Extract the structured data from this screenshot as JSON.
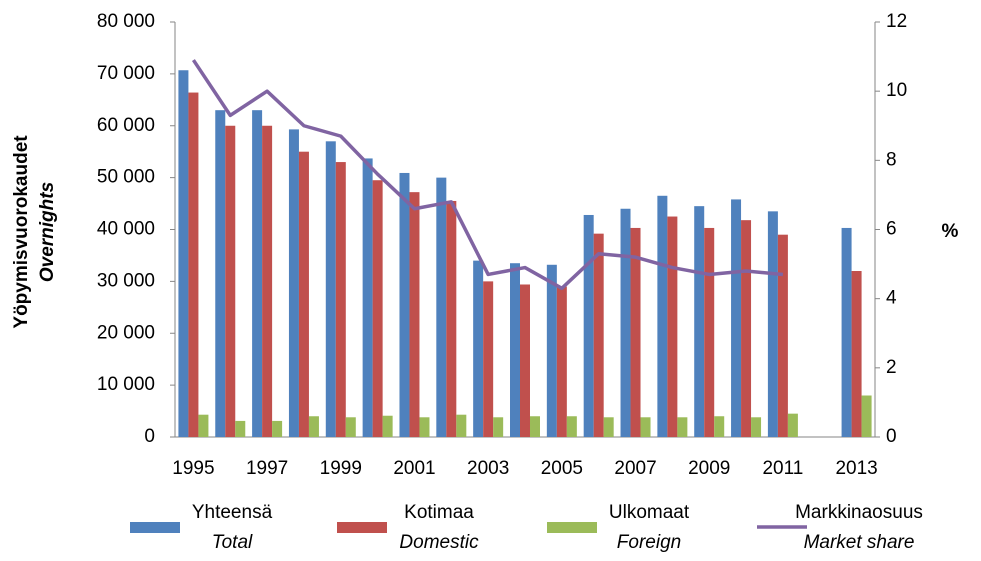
{
  "chart_data": {
    "type": "bar",
    "y_label": "Yöpymisvuorokaudet",
    "y_label_sub": "Overnights",
    "y2_label": "%",
    "categories": [
      "1995",
      null,
      "1997",
      null,
      "1999",
      null,
      "2001",
      null,
      "2003",
      null,
      "2005",
      null,
      "2007",
      null,
      "2009",
      null,
      "2011",
      null,
      "2013"
    ],
    "series": [
      {
        "name": "Yhteensä",
        "subname": "Total",
        "color": "#4f81bd",
        "values": [
          70700,
          63000,
          63000,
          59300,
          57000,
          53700,
          50900,
          50000,
          34000,
          33500,
          33200,
          42800,
          44000,
          46500,
          44500,
          45800,
          43500,
          null,
          40300
        ]
      },
      {
        "name": "Kotimaa",
        "subname": "Domestic",
        "color": "#c0504d",
        "values": [
          66400,
          60000,
          60000,
          55000,
          53000,
          49500,
          47200,
          45500,
          30000,
          29400,
          29000,
          39200,
          40300,
          42500,
          40300,
          41800,
          39000,
          null,
          32000
        ]
      },
      {
        "name": "Ulkomaat",
        "subname": "Foreign",
        "color": "#9bbb59",
        "values": [
          4300,
          3100,
          3100,
          4000,
          3800,
          4100,
          3800,
          4300,
          3800,
          4000,
          4000,
          3800,
          3800,
          3800,
          4000,
          3800,
          4500,
          null,
          8000
        ]
      },
      {
        "name": "Markkinaosuus",
        "subname": "Market share",
        "color": "#8064a2",
        "type": "line",
        "axis": "y2",
        "values": [
          10.9,
          9.3,
          10.0,
          9.0,
          8.7,
          7.6,
          6.6,
          6.8,
          4.7,
          4.9,
          4.3,
          5.3,
          5.2,
          4.9,
          4.7,
          4.8,
          4.7,
          null,
          null
        ]
      }
    ],
    "ylim": [
      0,
      80000
    ],
    "yticks": [
      0,
      {
        "value": 10000,
        "label": "10 000"
      },
      {
        "value": 20000,
        "label": "20 000"
      },
      {
        "value": 30000,
        "label": "30 000"
      },
      {
        "value": 40000,
        "label": "40 000"
      },
      {
        "value": 50000,
        "label": "50 000"
      },
      {
        "value": 60000,
        "label": "60 000"
      },
      {
        "value": 70000,
        "label": "70 000"
      },
      {
        "value": 80000,
        "label": "80 000"
      }
    ],
    "y2lim": [
      0,
      12
    ],
    "y2ticks": [
      0,
      2,
      4,
      6,
      8,
      10,
      12
    ],
    "grid": false,
    "legend": "bottom"
  }
}
